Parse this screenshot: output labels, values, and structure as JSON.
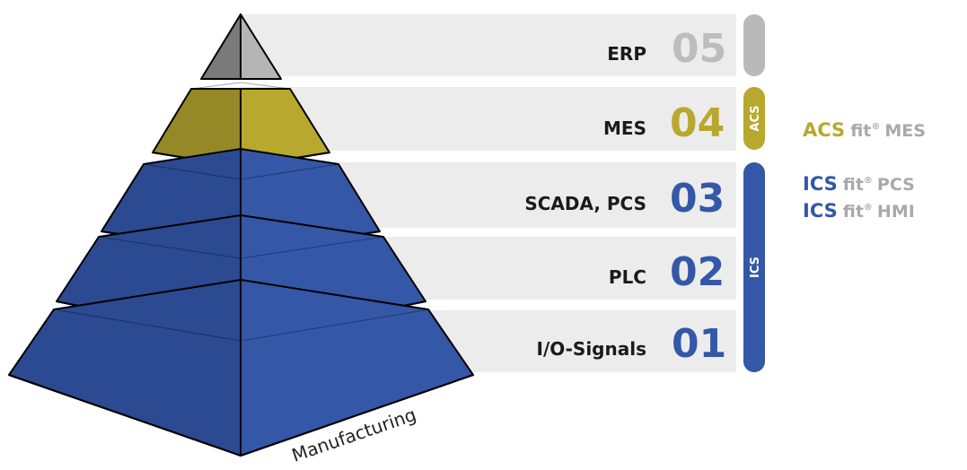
{
  "colors": {
    "blue": "#3457a7",
    "blue_dark": "#2c4a91",
    "gold": "#b8a82e",
    "gold_dark": "#958826",
    "grey_top": "#b5b5b5",
    "grey_top_dark": "#7a7a7a",
    "bar": "#ececec",
    "pill_grey": "#b9b9b9",
    "num_grey": "#bdbdbd",
    "text_grey": "#a9a9a9"
  },
  "levels": [
    {
      "number": "05",
      "label": "ERP",
      "tone": "grey"
    },
    {
      "number": "04",
      "label": "MES",
      "tone": "gold"
    },
    {
      "number": "03",
      "label": "SCADA, PCS",
      "tone": "blue"
    },
    {
      "number": "02",
      "label": "PLC",
      "tone": "blue"
    },
    {
      "number": "01",
      "label": "I/O-Signals",
      "tone": "blue"
    }
  ],
  "pills": {
    "acs": "ACS",
    "ics": "ICS"
  },
  "pyramid": {
    "base_label": "Manufacturing"
  },
  "products": [
    {
      "brand": "ACS",
      "fit": "fit",
      "reg": "®",
      "target": "MES",
      "tone": "gold"
    },
    {
      "brand": "ICS",
      "fit": "fit",
      "reg": "®",
      "target": "PCS",
      "tone": "blue"
    },
    {
      "brand": "ICS",
      "fit": "fit",
      "reg": "®",
      "target": "HMI",
      "tone": "blue"
    }
  ]
}
